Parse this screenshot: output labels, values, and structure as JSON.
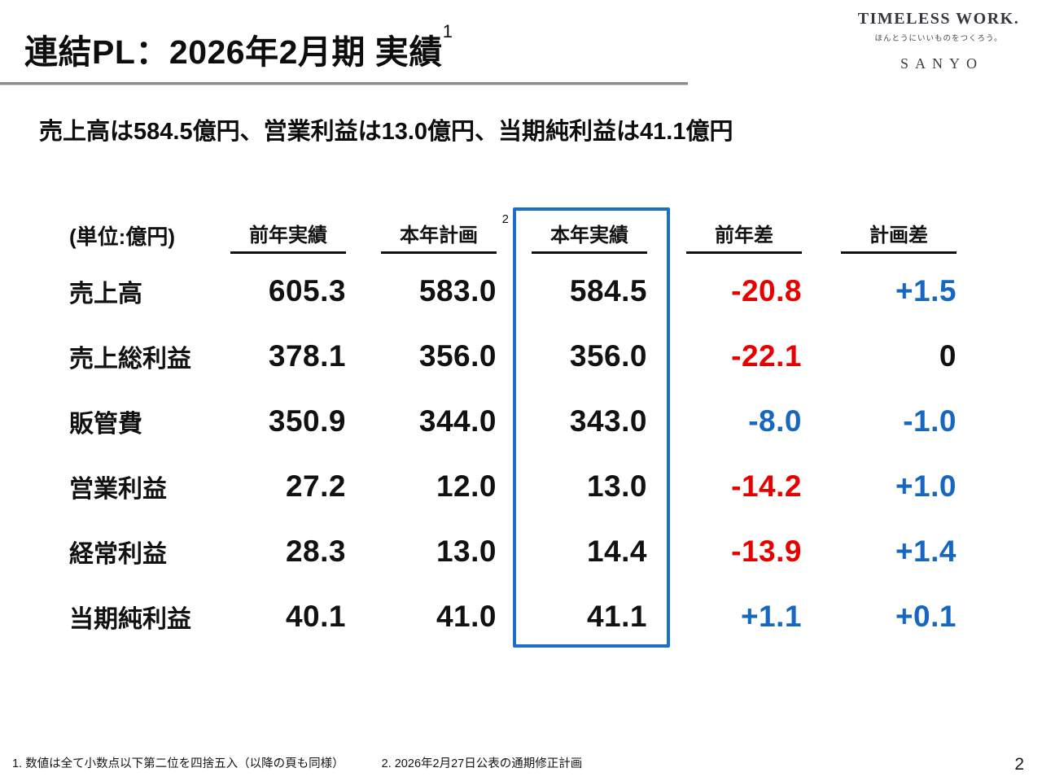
{
  "slide": {
    "title": "連結PL：2026年2月期 実績",
    "title_sup": "1",
    "page_number": "2"
  },
  "logo": {
    "brand": "TIMELESS WORK.",
    "tagline": "ほんとうにいいものをつくろう。",
    "company": "SANYO"
  },
  "headline": "売上高は584.5億円、営業利益は13.0億円、当期純利益は41.1億円",
  "table": {
    "unit_label": "(単位:億円)",
    "headers": {
      "prev_actual": "前年実績",
      "plan": "本年計画",
      "plan_sup": "2",
      "actual": "本年実績",
      "yoy_diff": "前年差",
      "plan_diff": "計画差"
    },
    "rows": [
      {
        "label": "売上高",
        "prev": "605.3",
        "plan": "583.0",
        "actual": "584.5",
        "yoy": "-20.8",
        "yoy_class": "red",
        "pdiff": "+1.5",
        "pdiff_class": "blue"
      },
      {
        "label": "売上総利益",
        "prev": "378.1",
        "plan": "356.0",
        "actual": "356.0",
        "yoy": "-22.1",
        "yoy_class": "red",
        "pdiff": "0",
        "pdiff_class": "black"
      },
      {
        "label": "販管費",
        "prev": "350.9",
        "plan": "344.0",
        "actual": "343.0",
        "yoy": "-8.0",
        "yoy_class": "blue",
        "pdiff": "-1.0",
        "pdiff_class": "blue"
      },
      {
        "label": "営業利益",
        "prev": "27.2",
        "plan": "12.0",
        "actual": "13.0",
        "yoy": "-14.2",
        "yoy_class": "red",
        "pdiff": "+1.0",
        "pdiff_class": "blue"
      },
      {
        "label": "経常利益",
        "prev": "28.3",
        "plan": "13.0",
        "actual": "14.4",
        "yoy": "-13.9",
        "yoy_class": "red",
        "pdiff": "+1.4",
        "pdiff_class": "blue"
      },
      {
        "label": "当期純利益",
        "prev": "40.1",
        "plan": "41.0",
        "actual": "41.1",
        "yoy": "+1.1",
        "yoy_class": "blue",
        "pdiff": "+0.1",
        "pdiff_class": "blue"
      }
    ]
  },
  "footnotes": {
    "note1": "1. 数値は全て小数点以下第二位を四捨五入（以降の頁も同様）",
    "note2": "2. 2026年2月27日公表の通期修正計画"
  },
  "colors": {
    "negative-red": "#e60000",
    "positive-blue": "#1667c1",
    "highlight-box": "#1b6fc9",
    "rule-gray": "#8a8a8a"
  }
}
